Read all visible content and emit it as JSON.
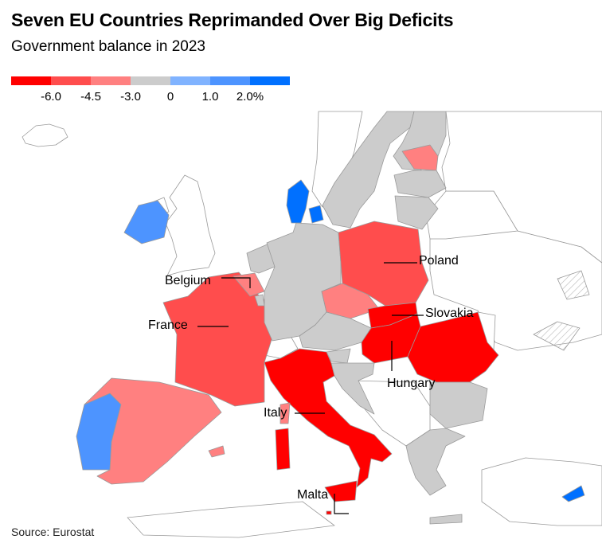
{
  "title": "Seven EU Countries Reprimanded Over Big Deficits",
  "subtitle": "Government balance in 2023",
  "legend": {
    "colors": [
      "#ff0000",
      "#ff4d4d",
      "#ff8080",
      "#cccccc",
      "#80b3ff",
      "#4d94ff",
      "#0070ff"
    ],
    "ticks": [
      "-6.0",
      "-4.5",
      "-3.0",
      "0",
      "1.0",
      "2.0%"
    ]
  },
  "labels": {
    "poland": "Poland",
    "belgium": "Belgium",
    "slovakia": "Slovakia",
    "france": "France",
    "hungary": "Hungary",
    "italy": "Italy",
    "malta": "Malta"
  },
  "source": "Source: Eurostat",
  "colors": {
    "neutral": "#cccccc",
    "non_eu": "#ffffff",
    "border": "#9a9a9a"
  }
}
